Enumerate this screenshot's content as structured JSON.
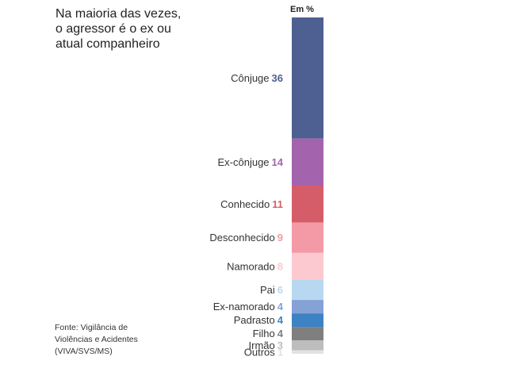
{
  "title": "Na maioria das vezes,\no agressor é o ex ou\natual companheiro",
  "unit": "Em %",
  "source": "Fonte: Vigilância de\nViolências e Acidentes\n(VIVA/SVS/MS)",
  "chart_data": {
    "type": "bar",
    "stacked": true,
    "unit": "%",
    "categories": [
      "Cônjuge",
      "Ex-cônjuge",
      "Conhecido",
      "Desconhecido",
      "Namorado",
      "Pai",
      "Ex-namorado",
      "Padrasto",
      "Filho",
      "Irmão",
      "Outros"
    ],
    "values": [
      36,
      14,
      11,
      9,
      8,
      6,
      4,
      4,
      4,
      3,
      1
    ],
    "colors": [
      "#4e5f91",
      "#a463ad",
      "#d55d6a",
      "#f39aa6",
      "#fbc9cf",
      "#b8d8f2",
      "#85a2d6",
      "#3d82c4",
      "#7f7f7f",
      "#bdbdbd",
      "#e2e2e2"
    ],
    "value_colors": [
      "#4e5f91",
      "#a463ad",
      "#d55d6a",
      "#f39aa6",
      "#fbc9cf",
      "#b8d8f2",
      "#85a2d6",
      "#3d82c4",
      "#7f7f7f",
      "#bdbdbd",
      "#e2e2e2"
    ]
  }
}
